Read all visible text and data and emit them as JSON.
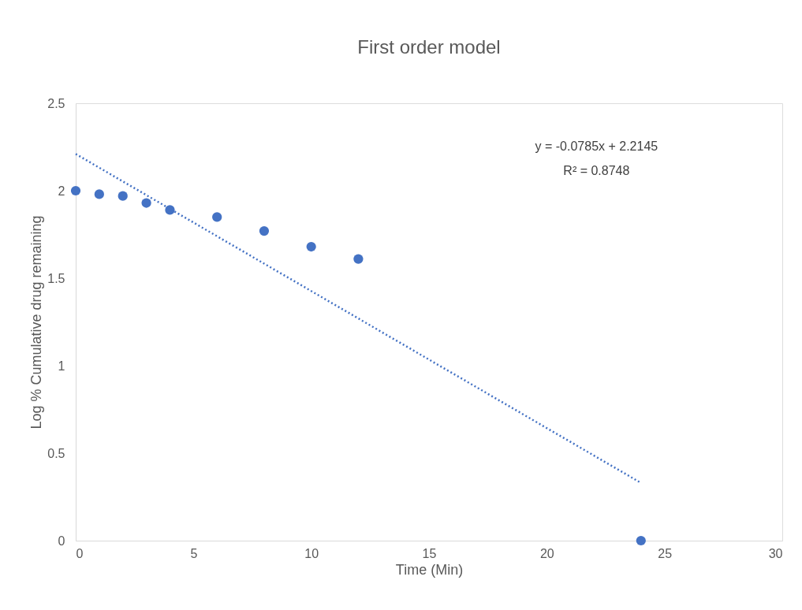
{
  "chart_data": {
    "type": "scatter",
    "title": "First order model",
    "xlabel": "Time (Min)",
    "ylabel": "Log % Cumulative drug remaining",
    "xlim": [
      0,
      30
    ],
    "xticks": [
      0,
      5,
      10,
      15,
      20,
      25,
      30
    ],
    "ylim": [
      0,
      2.5
    ],
    "yticks": [
      0,
      0.5,
      1,
      1.5,
      2,
      2.5
    ],
    "grid": false,
    "marker": "circle",
    "series": [
      {
        "color": "#4472c4",
        "x": [
          0,
          1,
          2,
          3,
          4,
          6,
          8,
          10,
          12,
          24
        ],
        "values": [
          2.0,
          1.98,
          1.97,
          1.93,
          1.89,
          1.85,
          1.77,
          1.68,
          1.61,
          0
        ]
      },
      {
        "type": "line",
        "color": "#4472c4",
        "line_style": "dotted",
        "marker": "none",
        "x": [
          0,
          24
        ],
        "values": [
          2.21,
          0.33
        ]
      }
    ],
    "annotations": [
      "y = -0.0785x + 2.2145",
      "R² = 0.8748"
    ]
  }
}
